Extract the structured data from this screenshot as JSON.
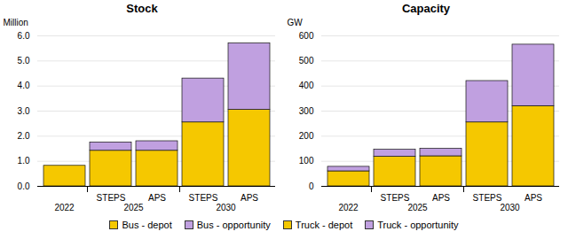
{
  "chart_data": [
    {
      "type": "bar",
      "stacked": true,
      "title": "Stock",
      "ylabel": "Million",
      "categories": [
        null,
        "STEPS",
        "APS",
        "STEPS",
        "APS"
      ],
      "category_groups": [
        "2022",
        "2025",
        "2025",
        "2030",
        "2030"
      ],
      "series": [
        {
          "name": "Bus - depot",
          "color": "#F5C800",
          "values": [
            0.82,
            1.42,
            1.42,
            2.55,
            3.05
          ]
        },
        {
          "name": "Bus - opportunity",
          "color": "#C0A0E0",
          "values": [
            0.0,
            0.33,
            0.38,
            1.75,
            2.65
          ]
        }
      ],
      "ylim": [
        0,
        6
      ],
      "yticks": [
        0,
        1,
        2,
        3,
        4,
        5,
        6
      ],
      "grid": true,
      "legend": "bottom"
    },
    {
      "type": "bar",
      "stacked": true,
      "title": "Capacity",
      "ylabel": "GW",
      "categories": [
        null,
        "STEPS",
        "APS",
        "STEPS",
        "APS"
      ],
      "category_groups": [
        "2022",
        "2025",
        "2025",
        "2030",
        "2030"
      ],
      "series": [
        {
          "name": "Truck - depot",
          "color": "#F5C800",
          "values": [
            60,
            118,
            120,
            255,
            320
          ]
        },
        {
          "name": "Truck - opportunity",
          "color": "#C0A0E0",
          "values": [
            18,
            28,
            30,
            165,
            245
          ]
        }
      ],
      "ylim": [
        0,
        600
      ],
      "yticks": [
        0,
        100,
        200,
        300,
        400,
        500,
        600
      ],
      "grid": true,
      "legend": "bottom"
    }
  ]
}
